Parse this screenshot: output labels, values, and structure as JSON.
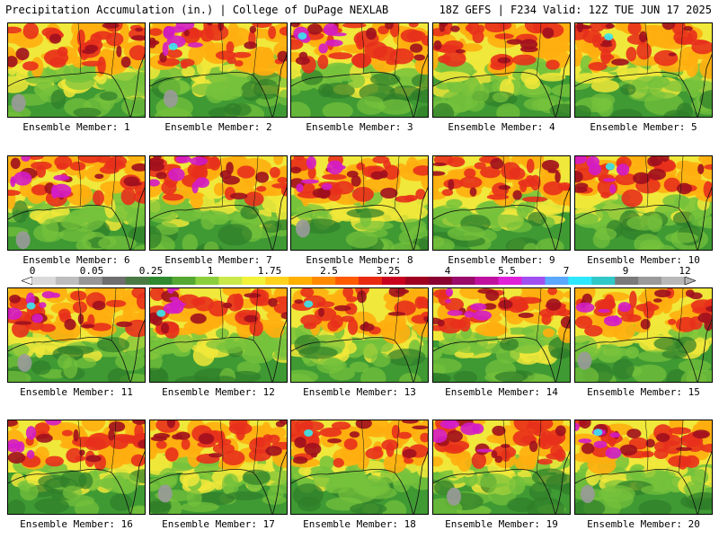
{
  "header": {
    "title": "Precipitation Accumulation (in.) | College of DuPage NEXLAB",
    "run_info": "18Z GEFS | F234 Valid: 12Z TUE JUN 17 2025"
  },
  "colorbar": {
    "labels": [
      "0",
      "0.05",
      "0.25",
      "1",
      "1.75",
      "2.5",
      "3.25",
      "4",
      "5.5",
      "7",
      "9",
      "12"
    ],
    "colors": [
      "#d9d9d9",
      "#bdbdbd",
      "#969696",
      "#6e6e6e",
      "#4a7a44",
      "#2f8a2f",
      "#55a832",
      "#8ccf3c",
      "#c9e84a",
      "#f2f23a",
      "#ffd21e",
      "#ffb000",
      "#ff8a00",
      "#ff5a00",
      "#e82a10",
      "#c8001e",
      "#a00020",
      "#8a0030",
      "#9a0a6a",
      "#c010a0",
      "#e020d8",
      "#a050f0",
      "#5aa8ff",
      "#2ee8ff",
      "#30c8c8",
      "#7a7a7a",
      "#9a9a9a",
      "#b8b8b8"
    ]
  },
  "members": [
    "Ensemble Member: 1",
    "Ensemble Member: 2",
    "Ensemble Member: 3",
    "Ensemble Member: 4",
    "Ensemble Member: 5",
    "Ensemble Member: 6",
    "Ensemble Member: 7",
    "Ensemble Member: 8",
    "Ensemble Member: 9",
    "Ensemble Member: 10",
    "Ensemble Member: 11",
    "Ensemble Member: 12",
    "Ensemble Member: 13",
    "Ensemble Member: 14",
    "Ensemble Member: 15",
    "Ensemble Member: 16",
    "Ensemble Member: 17",
    "Ensemble Member: 18",
    "Ensemble Member: 19",
    "Ensemble Member: 20"
  ],
  "palette": {
    "green_dark": "#2f7d2a",
    "green": "#3f9a33",
    "green_light": "#76c23c",
    "yellow": "#f0e83a",
    "orange": "#ffae10",
    "red": "#e8301c",
    "maroon": "#a0101e",
    "magenta": "#d41cc8",
    "cyan": "#38e8f0",
    "gray": "#9a9a9a",
    "coast": "#111111"
  }
}
